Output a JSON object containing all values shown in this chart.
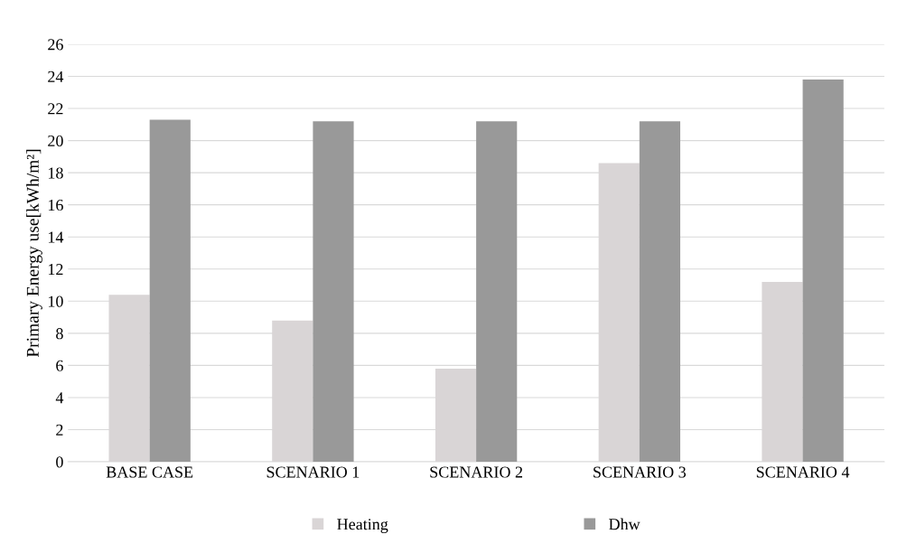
{
  "chart_data": {
    "type": "bar",
    "ylabel": "Primary Energy use[kWh/m²]",
    "categories": [
      "BASE CASE",
      "SCENARIO 1",
      "SCENARIO 2",
      "SCENARIO 3",
      "SCENARIO 4"
    ],
    "series": [
      {
        "name": "Heating",
        "color": "#d9d5d6",
        "values": [
          10.4,
          8.8,
          5.8,
          18.6,
          11.2
        ]
      },
      {
        "name": "Dhw",
        "color": "#999999",
        "values": [
          21.3,
          21.2,
          21.2,
          21.2,
          23.8
        ]
      }
    ],
    "ylim": [
      0,
      26
    ],
    "yticks": [
      0,
      2,
      4,
      6,
      8,
      10,
      12,
      14,
      16,
      18,
      20,
      22,
      24,
      26
    ],
    "grid": "y",
    "legend": "bottom"
  }
}
